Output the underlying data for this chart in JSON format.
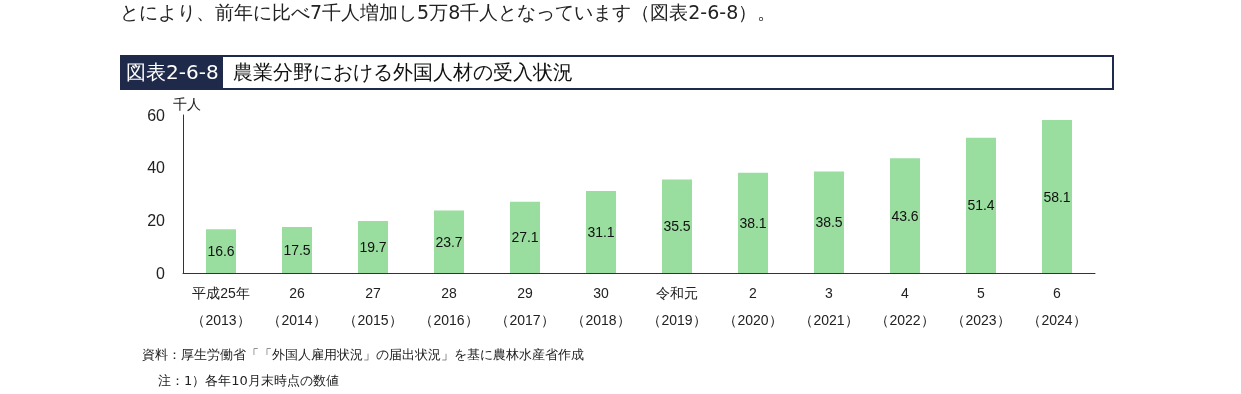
{
  "chart_data": {
    "type": "bar",
    "title": "農業分野における外国人材の受入状況",
    "subtitle": "図表2-6-8",
    "ylabel": "千人",
    "categories": [
      "平成25年（2013）",
      "26（2014）",
      "27（2015）",
      "28（2016）",
      "29（2017）",
      "30（2018）",
      "令和元（2019）",
      "2（2020）",
      "3（2021）",
      "4（2022）",
      "5（2023）",
      "6（2024）"
    ],
    "values": [
      16.6,
      17.5,
      19.7,
      23.7,
      27.1,
      31.1,
      35.5,
      38.1,
      38.5,
      43.6,
      51.4,
      58.1
    ],
    "color": "#99dd9f",
    "ylim": [
      0,
      60
    ],
    "yticks": [
      0,
      20,
      40,
      60
    ],
    "grid": false,
    "data_labels": true,
    "annotations": [
      "とにより、前年に比べ7千人増加し5万8千人となっています（図表2-6-8）。",
      "資料：厚生労働省「「外国人雇用状況」の届出状況」を基に農林水産省作成",
      "注：1）各年10月末時点の数値"
    ]
  }
}
